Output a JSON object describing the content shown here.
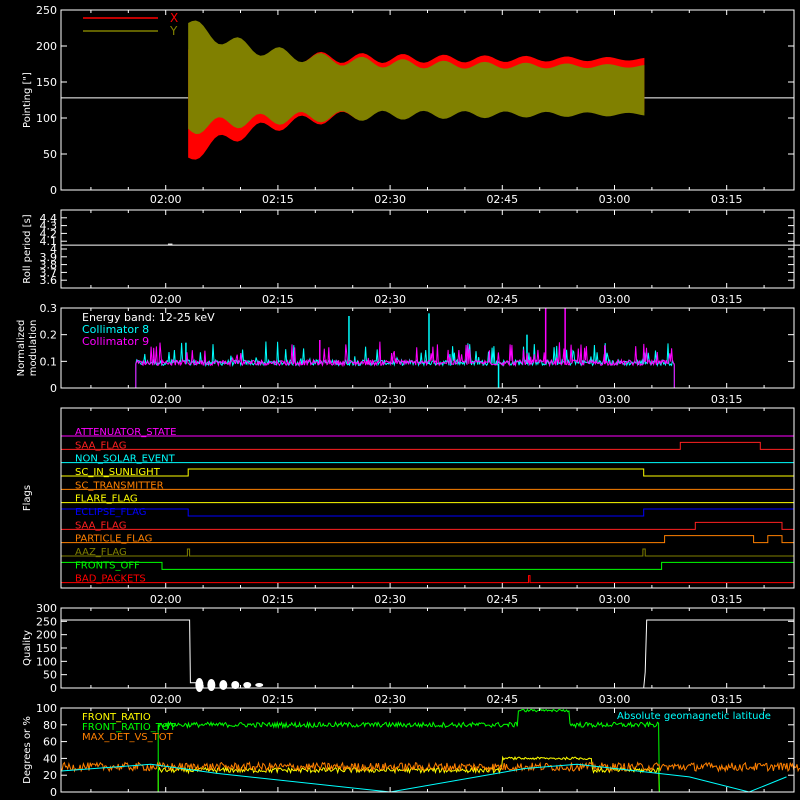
{
  "figure": {
    "background": "#000000",
    "axis_color": "#ffffff",
    "grid": false
  },
  "time_axis": {
    "tick_labels": [
      "02:00",
      "02:15",
      "02:30",
      "02:45",
      "03:00",
      "03:15"
    ],
    "tick_minutes": [
      0,
      15,
      30,
      45,
      60,
      75
    ],
    "range_minutes": [
      -14,
      84
    ]
  },
  "chart_data": [
    {
      "id": "pointing",
      "type": "line",
      "ylabel": "Pointing [\"]",
      "ylim": [
        0,
        250
      ],
      "yticks": [
        0,
        50,
        100,
        150,
        200,
        250
      ],
      "legend_position": "top-left",
      "reference_line": 128,
      "series": [
        {
          "name": "X",
          "color": "#ff0000",
          "time_range": [
            "02:03",
            "03:04"
          ],
          "envelope_upper_start_end": [
            195,
            182
          ],
          "envelope_lower_start_end": [
            45,
            110
          ]
        },
        {
          "name": "Y",
          "color": "#808000",
          "time_range": [
            "02:03",
            "03:04"
          ],
          "envelope_upper_start_end": [
            232,
            172
          ],
          "envelope_lower_start_end": [
            85,
            105
          ]
        }
      ]
    },
    {
      "id": "roll_period",
      "type": "line",
      "ylabel": "Roll period [s]",
      "ylim": [
        3.5,
        4.5
      ],
      "yticks": [
        3.6,
        3.7,
        3.8,
        3.9,
        4.0,
        4.1,
        4.2,
        4.3,
        4.4
      ],
      "series": [
        {
          "color": "#ffffff",
          "value": 4.05,
          "time_range": [
            "01:46",
            "03:26"
          ]
        }
      ]
    },
    {
      "id": "modulation",
      "type": "line",
      "ylabel": "Normalized modulation",
      "ylim": [
        0,
        0.3
      ],
      "yticks": [
        0.0,
        0.1,
        0.2,
        0.3
      ],
      "annotation": "Energy band: 12-25 keV",
      "series": [
        {
          "name": "Collimator 8",
          "color": "#00ffff",
          "time_range": [
            "01:56",
            "03:08"
          ],
          "baseline": 0.09,
          "spikes": [
            [
              2.7,
              0.17
            ],
            [
              24.5,
              0.27
            ],
            [
              35.2,
              0.28
            ],
            [
              48.3,
              0.2
            ],
            [
              44.5,
              0.0
            ]
          ]
        },
        {
          "name": "Collimator 9",
          "color": "#ff00ff",
          "time_range": [
            "01:56",
            "03:08"
          ],
          "baseline": 0.09,
          "spikes": [
            [
              50.8,
              0.3
            ],
            [
              53.4,
              0.3
            ],
            [
              20.6,
              0.18
            ],
            [
              58.7,
              0.16
            ]
          ]
        }
      ]
    },
    {
      "id": "flags",
      "type": "line",
      "ylabel": "Flags",
      "series": [
        {
          "name": "ATTENUATOR_STATE",
          "color": "#ff00ff",
          "steps": [
            [
              -14,
              0
            ]
          ]
        },
        {
          "name": "SAA_FLAG",
          "color": "#ff2020",
          "steps": [
            [
              -14,
              0
            ],
            [
              68.8,
              1
            ],
            [
              79.5,
              0
            ]
          ]
        },
        {
          "name": "NON_SOLAR_EVENT",
          "color": "#00ffff",
          "steps": [
            [
              -14,
              0
            ]
          ]
        },
        {
          "name": "SC_IN_SUNLIGHT",
          "color": "#ffff00",
          "steps": [
            [
              -14,
              0
            ],
            [
              3,
              1
            ],
            [
              63.9,
              0
            ]
          ]
        },
        {
          "name": "SC_TRANSMITTER",
          "color": "#ff8000",
          "steps": [
            [
              -14,
              0
            ]
          ]
        },
        {
          "name": "FLARE_FLAG",
          "color": "#ffff00",
          "steps": [
            [
              -14,
              0
            ]
          ]
        },
        {
          "name": "ECLIPSE_FLAG",
          "color": "#0000ff",
          "steps": [
            [
              -14,
              1
            ],
            [
              3,
              0
            ],
            [
              63.9,
              1
            ]
          ]
        },
        {
          "name": "SAA_FLAG",
          "color": "#ff2020",
          "steps": [
            [
              -14,
              0
            ],
            [
              70.8,
              1
            ],
            [
              82.4,
              0
            ]
          ]
        },
        {
          "name": "PARTICLE_FLAG",
          "color": "#ff8000",
          "steps": [
            [
              -14,
              0
            ],
            [
              66.7,
              1
            ],
            [
              78.6,
              0
            ],
            [
              80.5,
              1
            ],
            [
              82.4,
              0
            ]
          ]
        },
        {
          "name": "AAZ_FLAG",
          "color": "#808000",
          "steps": [
            [
              -14,
              0
            ],
            [
              2.9,
              1
            ],
            [
              3.2,
              0
            ],
            [
              63.8,
              1
            ],
            [
              64.1,
              0
            ]
          ]
        },
        {
          "name": "FRONTS_OFF",
          "color": "#00ff00",
          "steps": [
            [
              -14,
              1
            ],
            [
              -0.5,
              0
            ],
            [
              66.3,
              1
            ]
          ]
        },
        {
          "name": "BAD_PACKETS",
          "color": "#ff0000",
          "steps": [
            [
              -14,
              0
            ],
            [
              48.5,
              1
            ],
            [
              48.7,
              0
            ]
          ]
        }
      ]
    },
    {
      "id": "quality",
      "type": "line",
      "ylabel": "Quality",
      "ylim": [
        0,
        300
      ],
      "yticks": [
        0,
        50,
        100,
        150,
        200,
        250,
        300
      ],
      "series": [
        {
          "color": "#ffffff",
          "points": [
            [
              -14,
              255
            ],
            [
              3.2,
              255
            ],
            [
              3.3,
              20
            ],
            [
              4,
              20
            ],
            [
              4.4,
              0
            ],
            [
              63.9,
              0
            ],
            [
              64.1,
              60
            ],
            [
              64.3,
              255
            ],
            [
              84,
              255
            ]
          ]
        }
      ]
    },
    {
      "id": "ratios",
      "type": "line",
      "ylabel": "Degrees or %",
      "ylim": [
        0,
        100
      ],
      "yticks": [
        0,
        20,
        40,
        60,
        80,
        100
      ],
      "series": [
        {
          "name": "FRONT_RATIO",
          "color": "#ffff00",
          "level": 26,
          "time_range": [
            "01:59",
            "03:06"
          ]
        },
        {
          "name": "FRONT_RATIO_TOT",
          "color": "#00ff00",
          "level": 80,
          "time_range": [
            "01:59",
            "03:06"
          ],
          "plateau": [
            47,
            54,
            97
          ]
        },
        {
          "name": "MAX_DET_VS_TOT",
          "color": "#ff8000",
          "level": 30,
          "time_range": [
            "01:46",
            "03:26"
          ]
        },
        {
          "name": "Absolute geomagnetic latitude",
          "color": "#00ffff",
          "points": [
            [
              -14,
              25
            ],
            [
              -2,
              33
            ],
            [
              7,
              22
            ],
            [
              30,
              0
            ],
            [
              48,
              28
            ],
            [
              55,
              33
            ],
            [
              70,
              18
            ],
            [
              78,
              0
            ],
            [
              83,
              18
            ]
          ]
        }
      ]
    }
  ]
}
